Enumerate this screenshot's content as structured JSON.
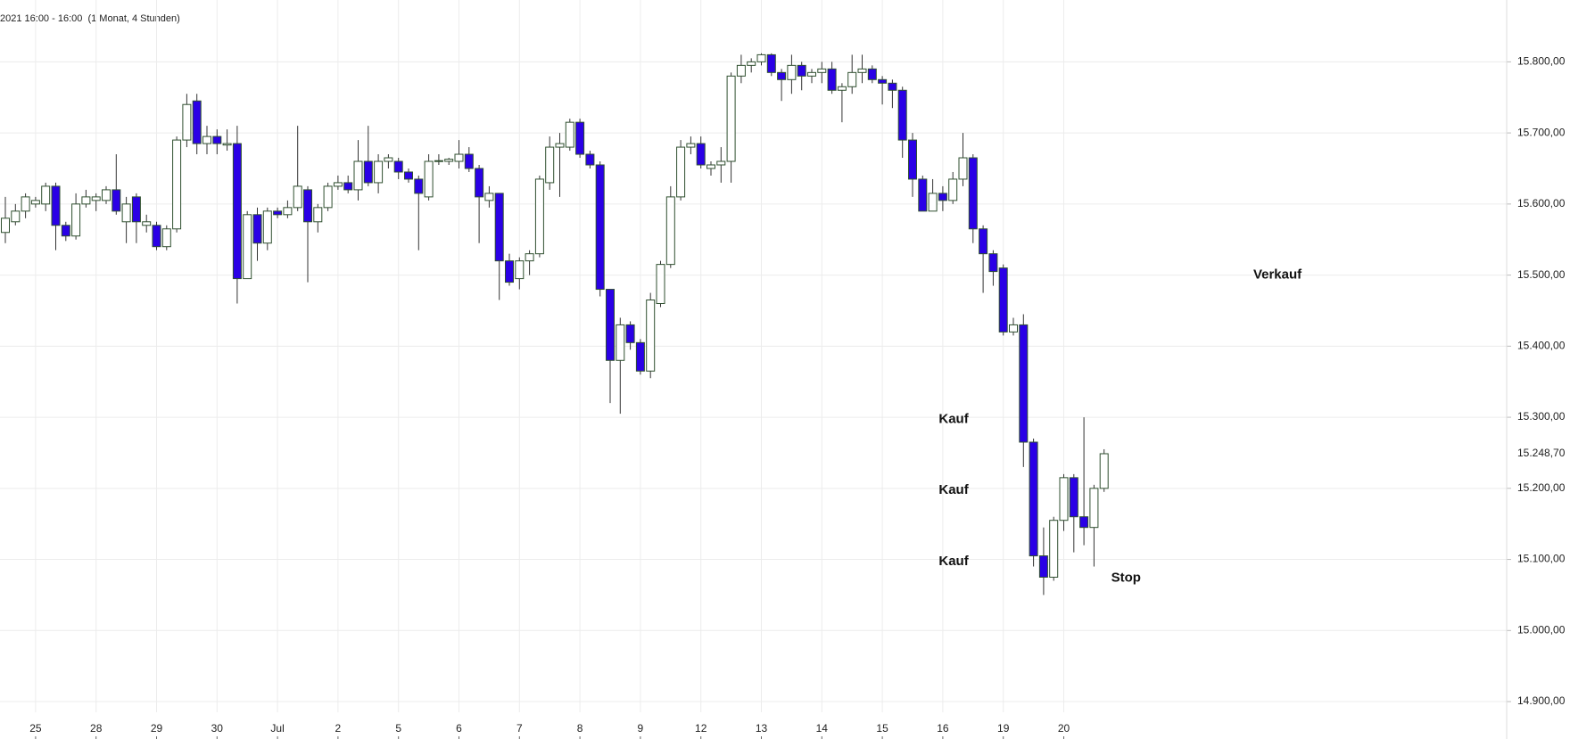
{
  "chart_data": {
    "type": "candlestick",
    "subtitle": "2021 16:00 - 16:00  (1 Monat, 4 Stunden)",
    "categories": [
      null,
      null,
      null,
      "25",
      null,
      null,
      null,
      null,
      null,
      "28",
      null,
      null,
      null,
      null,
      null,
      "29",
      null,
      null,
      null,
      null,
      null,
      "30",
      null,
      null,
      null,
      null,
      null,
      "Jul",
      null,
      null,
      null,
      null,
      null,
      "2",
      null,
      null,
      null,
      null,
      null,
      "5",
      null,
      null,
      null,
      null,
      null,
      "6",
      null,
      null,
      null,
      null,
      null,
      "7",
      null,
      null,
      null,
      null,
      null,
      "8",
      null,
      null,
      null,
      null,
      null,
      "9",
      null,
      null,
      null,
      null,
      null,
      "12",
      null,
      null,
      null,
      null,
      null,
      "13",
      null,
      null,
      null,
      null,
      null,
      "14",
      null,
      null,
      null,
      null,
      null,
      "15",
      null,
      null,
      null,
      null,
      null,
      "16",
      null,
      null,
      null,
      null,
      null,
      "19",
      null,
      null,
      null,
      null,
      null,
      "20",
      null,
      null,
      null,
      null
    ],
    "open": [
      15560,
      15575,
      15590,
      15600,
      15600,
      15625,
      15570,
      15555,
      15600,
      15605,
      15605,
      15620,
      15575,
      15610,
      15570,
      15570,
      15540,
      15565,
      15690,
      15745,
      15685,
      15695,
      15683,
      15685,
      15495,
      15585,
      15545,
      15590,
      15585,
      15595,
      15620,
      15575,
      15595,
      15625,
      15630,
      15620,
      15660,
      15630,
      15660,
      15660,
      15645,
      15635,
      15610,
      15660,
      15660,
      15660,
      15670,
      15650,
      15605,
      15615,
      15520,
      15495,
      15520,
      15530,
      15630,
      15680,
      15680,
      15715,
      15670,
      15655,
      15480,
      15380,
      15430,
      15405,
      15365,
      15460,
      15515,
      15610,
      15680,
      15685,
      15650,
      15655,
      15660,
      15780,
      15795,
      15800,
      15810,
      15785,
      15775,
      15795,
      15780,
      15785,
      15790,
      15760,
      15765,
      15785,
      15790,
      15775,
      15770,
      15760,
      15690,
      15635,
      15590,
      15615,
      15605,
      15635,
      15665,
      15565,
      15530,
      15510,
      15420,
      15430,
      15265,
      15105,
      15075,
      15155,
      15215,
      15160,
      15145,
      15200
    ],
    "high": [
      15610,
      15600,
      15615,
      15610,
      15630,
      15630,
      15575,
      15615,
      15620,
      15615,
      15625,
      15670,
      15610,
      15615,
      15585,
      15575,
      15570,
      15695,
      15755,
      15755,
      15710,
      15705,
      15705,
      15710,
      15590,
      15595,
      15595,
      15595,
      15605,
      15710,
      15625,
      15600,
      15630,
      15640,
      15640,
      15690,
      15710,
      15670,
      15670,
      15665,
      15650,
      15640,
      15670,
      15670,
      15665,
      15690,
      15680,
      15655,
      15625,
      15615,
      15530,
      15525,
      15535,
      15640,
      15695,
      15700,
      15720,
      15720,
      15675,
      15660,
      15480,
      15440,
      15435,
      15410,
      15475,
      15520,
      15625,
      15690,
      15695,
      15695,
      15660,
      15680,
      15785,
      15810,
      15805,
      15812,
      15812,
      15790,
      15810,
      15800,
      15790,
      15800,
      15800,
      15770,
      15810,
      15810,
      15795,
      15780,
      15775,
      15765,
      15700,
      15640,
      15635,
      15625,
      15645,
      15700,
      15670,
      15570,
      15535,
      15515,
      15440,
      15445,
      15270,
      15145,
      15160,
      15220,
      15220,
      15300,
      15205,
      15255
    ],
    "low": [
      15545,
      15570,
      15580,
      15595,
      15590,
      15535,
      15548,
      15550,
      15595,
      15590,
      15600,
      15585,
      15545,
      15545,
      15560,
      15535,
      15535,
      15560,
      15680,
      15670,
      15670,
      15670,
      15675,
      15460,
      15495,
      15520,
      15535,
      15580,
      15580,
      15590,
      15490,
      15560,
      15590,
      15620,
      15615,
      15605,
      15625,
      15615,
      15650,
      15635,
      15630,
      15535,
      15605,
      15655,
      15655,
      15650,
      15645,
      15545,
      15595,
      15465,
      15485,
      15480,
      15500,
      15525,
      15620,
      15610,
      15675,
      15665,
      15650,
      15470,
      15320,
      15305,
      15395,
      15360,
      15355,
      15455,
      15510,
      15605,
      15670,
      15650,
      15640,
      15630,
      15630,
      15770,
      15785,
      15795,
      15780,
      15745,
      15755,
      15760,
      15770,
      15770,
      15755,
      15715,
      15755,
      15770,
      15770,
      15740,
      15735,
      15665,
      15610,
      15590,
      15590,
      15590,
      15600,
      15625,
      15545,
      15475,
      15485,
      15415,
      15415,
      15230,
      15090,
      15050,
      15070,
      15140,
      15110,
      15120,
      15090,
      15195
    ],
    "close": [
      15580,
      15590,
      15610,
      15605,
      15625,
      15570,
      15555,
      15600,
      15610,
      15610,
      15620,
      15590,
      15600,
      15575,
      15575,
      15540,
      15565,
      15690,
      15740,
      15685,
      15695,
      15685,
      15685,
      15495,
      15585,
      15545,
      15590,
      15585,
      15595,
      15625,
      15575,
      15595,
      15625,
      15630,
      15620,
      15660,
      15630,
      15660,
      15665,
      15645,
      15635,
      15615,
      15660,
      15661,
      15663,
      15670,
      15650,
      15610,
      15615,
      15520,
      15490,
      15520,
      15530,
      15635,
      15680,
      15685,
      15715,
      15670,
      15655,
      15480,
      15380,
      15430,
      15405,
      15365,
      15465,
      15515,
      15610,
      15680,
      15685,
      15655,
      15655,
      15660,
      15780,
      15795,
      15800,
      15810,
      15785,
      15775,
      15795,
      15780,
      15785,
      15790,
      15760,
      15765,
      15785,
      15790,
      15775,
      15770,
      15760,
      15690,
      15635,
      15590,
      15615,
      15605,
      15635,
      15665,
      15565,
      15530,
      15505,
      15420,
      15430,
      15265,
      15105,
      15075,
      15155,
      15215,
      15160,
      15145,
      15200,
      15248.7
    ],
    "up_color": "#ffffff",
    "down_color": "#2a00e6",
    "edge_color": "#2f4f2f",
    "wick_color": "#333333",
    "ylim": [
      14885,
      15887
    ],
    "yticks": [
      {
        "value": 14900,
        "label": "14.900,00"
      },
      {
        "value": 15000,
        "label": "15.000,00"
      },
      {
        "value": 15100,
        "label": "15.100,00"
      },
      {
        "value": 15200,
        "label": "15.200,00"
      },
      {
        "value": 15300,
        "label": "15.300,00"
      },
      {
        "value": 15400,
        "label": "15.400,00"
      },
      {
        "value": 15500,
        "label": "15.500,00"
      },
      {
        "value": 15600,
        "label": "15.600,00"
      },
      {
        "value": 15700,
        "label": "15.700,00"
      },
      {
        "value": 15800,
        "label": "15.800,00"
      }
    ],
    "last_price": {
      "value": 15248.7,
      "label": "15.248,70"
    },
    "grid": true,
    "annotations": [
      {
        "text": "Verkauf",
        "x": 123.8,
        "y": 15500
      },
      {
        "text": "Kauf",
        "x": 92.6,
        "y": 15297
      },
      {
        "text": "Kauf",
        "x": 92.6,
        "y": 15197
      },
      {
        "text": "Kauf",
        "x": 92.6,
        "y": 15097
      },
      {
        "text": "Stop",
        "x": 109.7,
        "y": 15074
      }
    ]
  }
}
